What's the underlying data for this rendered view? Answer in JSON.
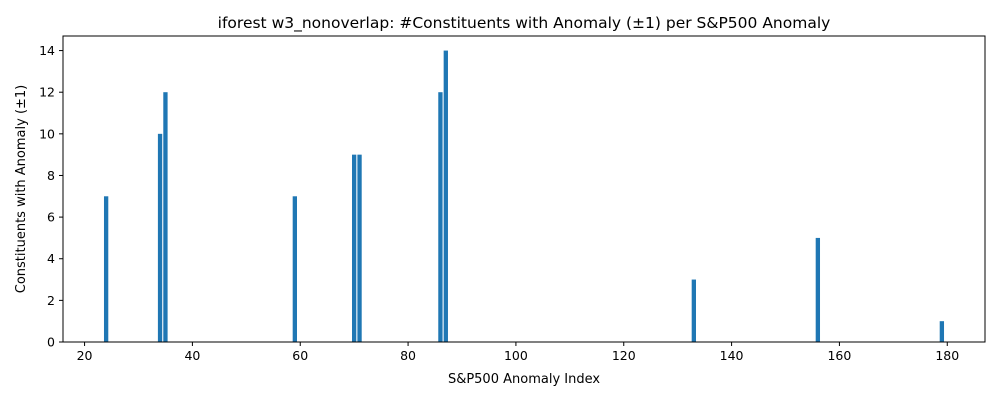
{
  "chart_data": {
    "type": "bar",
    "title": "iforest w3_nonoverlap: #Constituents with Anomaly (±1) per S&P500 Anomaly",
    "xlabel": "S&P500 Anomaly Index",
    "ylabel": "Constituents with Anomaly (±1)",
    "xlim": [
      16,
      187
    ],
    "ylim": [
      0,
      14.7
    ],
    "xticks": [
      20,
      40,
      60,
      80,
      100,
      120,
      140,
      160,
      180
    ],
    "yticks": [
      0,
      2,
      4,
      6,
      8,
      10,
      12,
      14
    ],
    "bar_color": "#1f77b4",
    "grid": false,
    "legend": "none",
    "x": [
      24,
      34,
      35,
      59,
      70,
      71,
      86,
      87,
      133,
      156,
      179
    ],
    "values": [
      7,
      10,
      12,
      7,
      9,
      9,
      12,
      14,
      3,
      5,
      1
    ]
  }
}
